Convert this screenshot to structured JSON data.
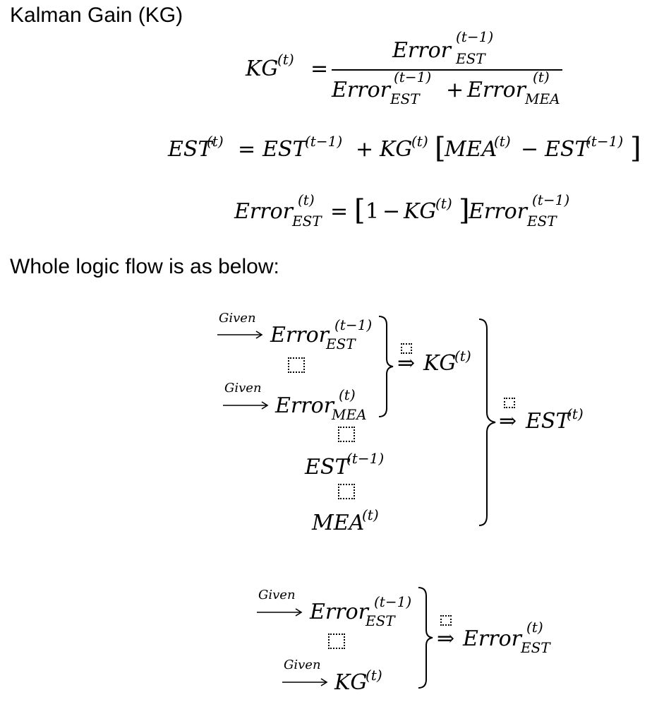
{
  "headings": {
    "title": "Kalman Gain (KG)",
    "flow_intro": "Whole logic flow is as below:"
  },
  "symbols": {
    "error": "Error",
    "est": "EST",
    "mea": "MEA",
    "kg": "KG",
    "given": "Given",
    "sup_t": "(t)",
    "sup_t1": "(t−1)",
    "sub_est": "EST",
    "sub_mea": "MEA",
    "eq": "=",
    "plus": "+",
    "minus": "−",
    "one": "1",
    "lbr": "[",
    "rbr": "]",
    "implies": "⇒"
  }
}
